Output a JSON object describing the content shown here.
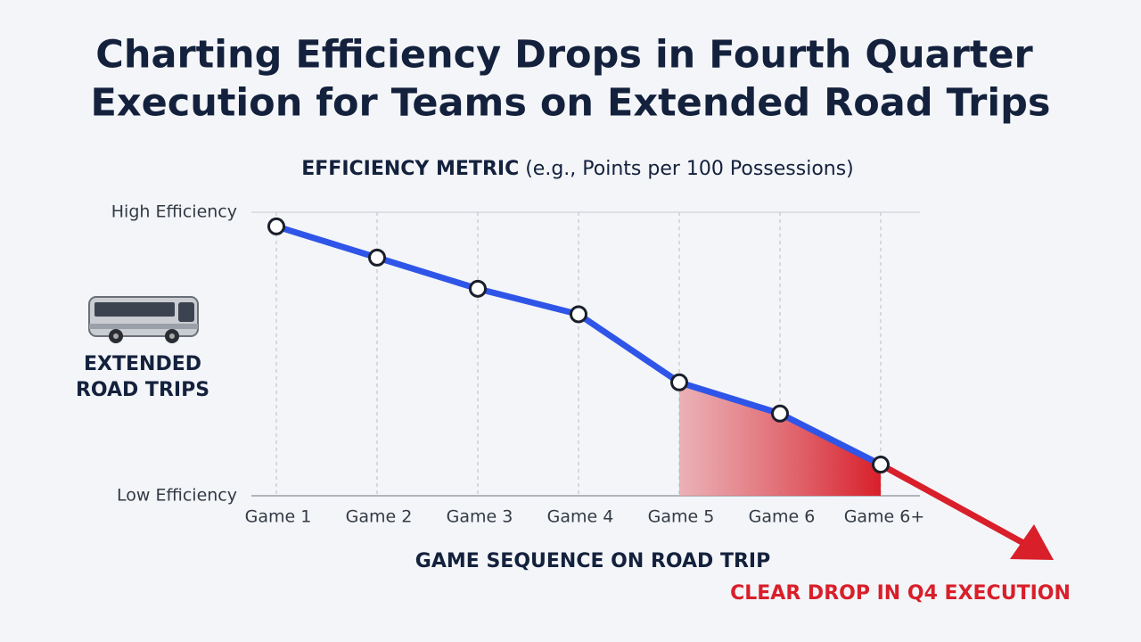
{
  "chart_data": {
    "type": "line",
    "title": [
      "Charting Efficiency Drops in Fourth Quarter",
      "Execution for Teams on Extended Road Trips"
    ],
    "ylabel": "EFFICIENCY METRIC",
    "ylabel_note": "(e.g., Points per 100 Possessions)",
    "xlabel": "GAME SEQUENCE ON ROAD TRIP",
    "side_label": [
      "EXTENDED",
      "ROAD TRIPS"
    ],
    "annotation": "CLEAR DROP IN Q4 EXECUTION",
    "categories": [
      "Game 1",
      "Game 2",
      "Game 3",
      "Game 4",
      "Game 5",
      "Game 6",
      "Game 6+"
    ],
    "series": [
      {
        "color": "#2f55e8",
        "values": [
          95,
          84,
          73,
          64,
          40,
          29,
          11
        ]
      }
    ],
    "ylim": [
      0,
      100
    ],
    "yticks": [
      {
        "value": 0,
        "label": "Low Efficiency"
      },
      {
        "value": 100,
        "label": "High Efficiency"
      }
    ],
    "grid": true,
    "highlight_color": "#d81f2a"
  }
}
